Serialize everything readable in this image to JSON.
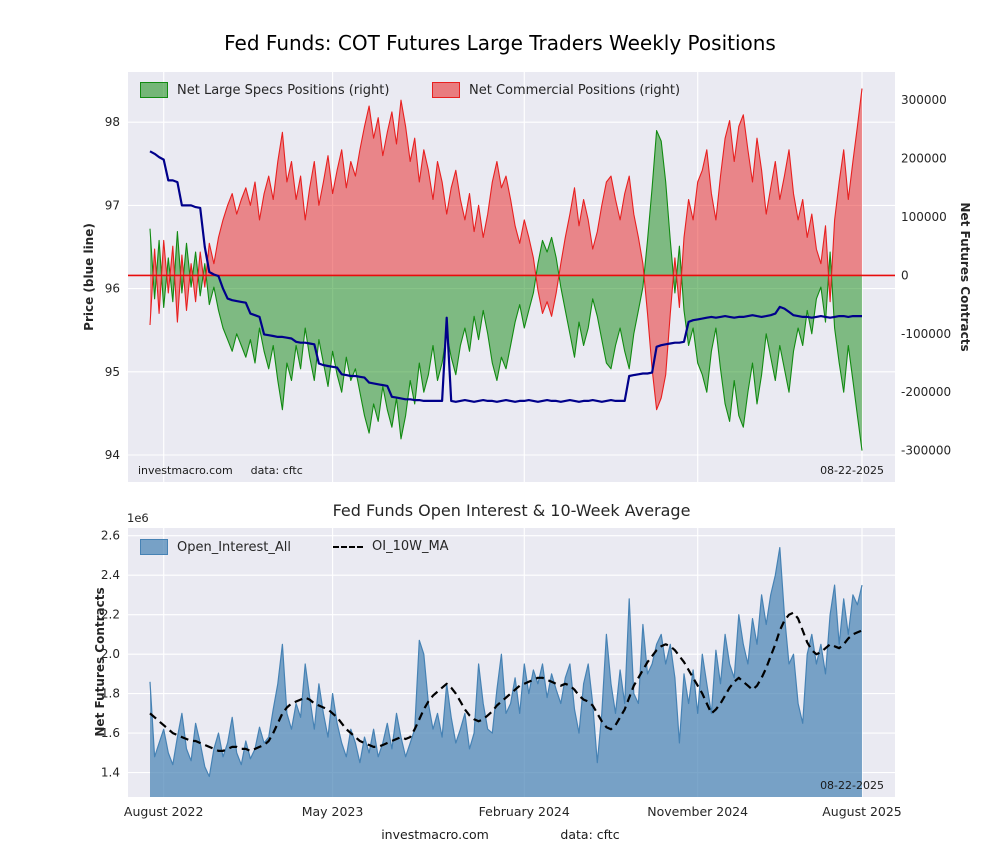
{
  "chart_data": [
    {
      "id": "cot-positions",
      "type": "area-line-combo",
      "title": "Fed Funds: COT Futures Large Traders Weekly Positions",
      "x_axis": {
        "start": "August 2022",
        "end": "August 2025",
        "frequency": "weekly",
        "points": 157
      },
      "left_axis": {
        "label": "Price (blue line)",
        "ticks": [
          94,
          95,
          96,
          97,
          98
        ],
        "range": [
          93.7,
          98.6
        ]
      },
      "right_axis": {
        "label": "Net Futures Contracts",
        "tick_values": [
          300000,
          200000,
          100000,
          0,
          -100000,
          -200000,
          -300000
        ],
        "tick_labels": [
          "300000",
          "200000",
          "100000",
          "0",
          "-100000",
          "-200000",
          "-300000"
        ],
        "range": [
          -355000,
          350000
        ]
      },
      "zero_line_color": "#e80c0c",
      "legend": [
        {
          "label": "Net Large Specs Positions (right)",
          "color": "#128a12"
        },
        {
          "label": "Net Commercial Positions (right)",
          "color": "#e82020"
        }
      ],
      "series": [
        {
          "name": "Net Large Specs Positions (right)",
          "type": "area",
          "axis": "right",
          "color": "#128a12",
          "values": [
            80000,
            -40000,
            60000,
            -55000,
            30000,
            -45000,
            75000,
            -30000,
            55000,
            -20000,
            40000,
            -35000,
            20000,
            -50000,
            -20000,
            -60000,
            -90000,
            -110000,
            -130000,
            -100000,
            -120000,
            -140000,
            -110000,
            -150000,
            -90000,
            -130000,
            -160000,
            -120000,
            -180000,
            -230000,
            -150000,
            -180000,
            -120000,
            -160000,
            -90000,
            -140000,
            -180000,
            -110000,
            -150000,
            -190000,
            -130000,
            -170000,
            -200000,
            -140000,
            -180000,
            -160000,
            -200000,
            -240000,
            -270000,
            -220000,
            -250000,
            -190000,
            -230000,
            -260000,
            -210000,
            -280000,
            -240000,
            -180000,
            -220000,
            -150000,
            -200000,
            -170000,
            -120000,
            -180000,
            -150000,
            -100000,
            -140000,
            -170000,
            -120000,
            -90000,
            -130000,
            -70000,
            -110000,
            -60000,
            -100000,
            -150000,
            -180000,
            -140000,
            -160000,
            -120000,
            -80000,
            -50000,
            -90000,
            -60000,
            -30000,
            20000,
            60000,
            40000,
            65000,
            30000,
            -20000,
            -60000,
            -100000,
            -140000,
            -80000,
            -120000,
            -90000,
            -40000,
            -70000,
            -110000,
            -150000,
            -160000,
            -120000,
            -90000,
            -130000,
            -160000,
            -100000,
            -60000,
            -20000,
            60000,
            150000,
            248000,
            230000,
            160000,
            60000,
            -30000,
            50000,
            -60000,
            -120000,
            -90000,
            -150000,
            -170000,
            -200000,
            -130000,
            -90000,
            -160000,
            -220000,
            -250000,
            -180000,
            -240000,
            -260000,
            -200000,
            -150000,
            -220000,
            -170000,
            -100000,
            -140000,
            -180000,
            -120000,
            -160000,
            -200000,
            -130000,
            -90000,
            -120000,
            -60000,
            -100000,
            -40000,
            -20000,
            -80000,
            40000,
            -90000,
            -150000,
            -200000,
            -120000,
            -180000,
            -240000,
            -300000
          ]
        },
        {
          "name": "Net Commercial Positions (right)",
          "type": "area",
          "axis": "right",
          "color": "#e82020",
          "values": [
            -85000,
            45000,
            -65000,
            60000,
            -30000,
            50000,
            -80000,
            35000,
            -60000,
            20000,
            -45000,
            40000,
            -20000,
            55000,
            20000,
            65000,
            95000,
            120000,
            140000,
            105000,
            130000,
            150000,
            120000,
            160000,
            95000,
            140000,
            170000,
            130000,
            195000,
            245000,
            160000,
            195000,
            130000,
            170000,
            95000,
            150000,
            195000,
            120000,
            160000,
            205000,
            140000,
            180000,
            215000,
            150000,
            195000,
            170000,
            215000,
            255000,
            290000,
            235000,
            270000,
            205000,
            245000,
            280000,
            225000,
            300000,
            255000,
            195000,
            235000,
            160000,
            215000,
            180000,
            130000,
            195000,
            160000,
            105000,
            150000,
            180000,
            130000,
            95000,
            140000,
            75000,
            120000,
            65000,
            105000,
            160000,
            195000,
            150000,
            170000,
            130000,
            85000,
            55000,
            95000,
            65000,
            30000,
            -25000,
            -65000,
            -45000,
            -70000,
            -30000,
            20000,
            65000,
            105000,
            150000,
            85000,
            130000,
            95000,
            45000,
            75000,
            120000,
            160000,
            170000,
            130000,
            95000,
            140000,
            170000,
            105000,
            65000,
            20000,
            -65000,
            -160000,
            -230000,
            -210000,
            -170000,
            -65000,
            30000,
            -55000,
            65000,
            130000,
            95000,
            160000,
            180000,
            215000,
            140000,
            95000,
            170000,
            235000,
            265000,
            195000,
            255000,
            275000,
            215000,
            160000,
            235000,
            180000,
            105000,
            150000,
            195000,
            130000,
            170000,
            215000,
            140000,
            95000,
            130000,
            65000,
            105000,
            45000,
            20000,
            85000,
            -45000,
            95000,
            160000,
            215000,
            130000,
            195000,
            255000,
            320000
          ]
        },
        {
          "name": "Price",
          "type": "line",
          "axis": "left",
          "color": "#00008b",
          "values": [
            97.65,
            97.62,
            97.58,
            97.55,
            97.3,
            97.3,
            97.28,
            97.0,
            97.0,
            97.0,
            96.98,
            96.97,
            96.5,
            96.2,
            96.17,
            96.15,
            96.0,
            95.88,
            95.86,
            95.85,
            95.84,
            95.83,
            95.7,
            95.68,
            95.66,
            95.45,
            95.44,
            95.43,
            95.42,
            95.42,
            95.41,
            95.4,
            95.36,
            95.35,
            95.35,
            95.34,
            95.33,
            95.1,
            95.08,
            95.07,
            95.06,
            95.05,
            94.97,
            94.96,
            94.95,
            94.95,
            94.94,
            94.93,
            94.87,
            94.86,
            94.85,
            94.84,
            94.83,
            94.7,
            94.69,
            94.68,
            94.67,
            94.67,
            94.66,
            94.66,
            94.65,
            94.65,
            94.65,
            94.65,
            94.65,
            95.65,
            94.65,
            94.64,
            94.65,
            94.66,
            94.65,
            94.64,
            94.65,
            94.66,
            94.65,
            94.65,
            94.64,
            94.65,
            94.66,
            94.65,
            94.64,
            94.65,
            94.65,
            94.66,
            94.65,
            94.64,
            94.65,
            94.66,
            94.65,
            94.65,
            94.64,
            94.65,
            94.66,
            94.65,
            94.64,
            94.65,
            94.65,
            94.66,
            94.65,
            94.64,
            94.65,
            94.66,
            94.65,
            94.65,
            94.65,
            94.95,
            94.96,
            94.97,
            94.98,
            94.98,
            94.99,
            95.3,
            95.32,
            95.33,
            95.34,
            95.35,
            95.35,
            95.36,
            95.6,
            95.62,
            95.63,
            95.64,
            95.65,
            95.66,
            95.65,
            95.66,
            95.67,
            95.66,
            95.65,
            95.66,
            95.66,
            95.67,
            95.68,
            95.67,
            95.66,
            95.67,
            95.68,
            95.7,
            95.78,
            95.76,
            95.72,
            95.68,
            95.67,
            95.66,
            95.66,
            95.65,
            95.66,
            95.67,
            95.66,
            95.65,
            95.66,
            95.67,
            95.67,
            95.66,
            95.67,
            95.67,
            95.67
          ]
        }
      ],
      "annotations": {
        "source": "investmacro.com",
        "source_data": "data: cftc",
        "date": "08-22-2025"
      }
    },
    {
      "id": "open-interest",
      "type": "area-line-combo",
      "title": "Fed Funds Open Interest & 10-Week Average",
      "y_axis": {
        "label": "Net Futures Contracts",
        "offset_text": "1e6",
        "units": "millions of contracts",
        "ticks": [
          1.4,
          1.6,
          1.8,
          2.0,
          2.2,
          2.4,
          2.6
        ],
        "range": [
          1.31,
          2.64
        ]
      },
      "x_axis": {
        "tick_labels": [
          "August 2022",
          "May 2023",
          "February 2024",
          "November 2024",
          "August 2025"
        ],
        "tick_weeks": [
          3,
          40,
          82,
          120,
          156
        ]
      },
      "legend": [
        {
          "label": "Open_Interest_All",
          "color": "#4682b4"
        },
        {
          "label": "OI_10W_MA",
          "color": "#000000",
          "style": "dashed"
        }
      ],
      "series": [
        {
          "name": "Open_Interest_All",
          "type": "area",
          "color": "#4682b4",
          "values": [
            1.86,
            1.48,
            1.55,
            1.62,
            1.5,
            1.44,
            1.58,
            1.7,
            1.52,
            1.46,
            1.65,
            1.55,
            1.43,
            1.38,
            1.52,
            1.6,
            1.48,
            1.55,
            1.68,
            1.5,
            1.44,
            1.56,
            1.47,
            1.52,
            1.63,
            1.55,
            1.58,
            1.72,
            1.85,
            2.05,
            1.7,
            1.62,
            1.75,
            1.68,
            1.95,
            1.78,
            1.62,
            1.85,
            1.7,
            1.58,
            1.8,
            1.65,
            1.55,
            1.48,
            1.62,
            1.55,
            1.45,
            1.58,
            1.5,
            1.62,
            1.48,
            1.55,
            1.65,
            1.52,
            1.7,
            1.58,
            1.48,
            1.55,
            1.62,
            2.07,
            2.0,
            1.75,
            1.62,
            1.7,
            1.58,
            1.85,
            1.68,
            1.55,
            1.62,
            1.7,
            1.52,
            1.6,
            1.95,
            1.75,
            1.62,
            1.6,
            1.82,
            2.0,
            1.7,
            1.75,
            1.88,
            1.7,
            1.95,
            1.8,
            1.92,
            1.85,
            1.95,
            1.78,
            1.9,
            1.82,
            1.75,
            1.88,
            1.95,
            1.72,
            1.6,
            1.85,
            1.95,
            1.75,
            1.45,
            1.7,
            2.1,
            1.85,
            1.7,
            1.92,
            1.75,
            2.28,
            1.8,
            1.75,
            2.15,
            1.9,
            1.95,
            2.05,
            2.1,
            1.95,
            2.05,
            1.88,
            1.55,
            1.9,
            1.75,
            1.92,
            1.7,
            2.0,
            1.85,
            1.7,
            2.02,
            1.85,
            2.1,
            1.95,
            1.88,
            2.2,
            2.05,
            1.95,
            2.18,
            2.05,
            2.3,
            2.15,
            2.3,
            2.4,
            2.54,
            2.2,
            1.95,
            2.0,
            1.75,
            1.65,
            2.0,
            2.1,
            1.95,
            2.05,
            1.9,
            2.2,
            2.35,
            2.05,
            2.28,
            2.1,
            2.3,
            2.25,
            2.35
          ]
        },
        {
          "name": "OI_10W_MA",
          "type": "line",
          "style": "dashed",
          "color": "#000000",
          "values": [
            1.7,
            1.68,
            1.66,
            1.64,
            1.62,
            1.6,
            1.59,
            1.58,
            1.57,
            1.56,
            1.56,
            1.55,
            1.54,
            1.53,
            1.52,
            1.51,
            1.51,
            1.52,
            1.53,
            1.53,
            1.52,
            1.52,
            1.51,
            1.52,
            1.53,
            1.54,
            1.56,
            1.6,
            1.65,
            1.7,
            1.73,
            1.75,
            1.76,
            1.77,
            1.78,
            1.77,
            1.75,
            1.74,
            1.73,
            1.72,
            1.7,
            1.68,
            1.65,
            1.62,
            1.6,
            1.58,
            1.56,
            1.55,
            1.54,
            1.53,
            1.53,
            1.54,
            1.55,
            1.56,
            1.57,
            1.58,
            1.57,
            1.58,
            1.62,
            1.67,
            1.72,
            1.76,
            1.79,
            1.81,
            1.83,
            1.85,
            1.83,
            1.8,
            1.76,
            1.72,
            1.69,
            1.67,
            1.66,
            1.67,
            1.69,
            1.71,
            1.74,
            1.76,
            1.78,
            1.8,
            1.82,
            1.84,
            1.85,
            1.86,
            1.87,
            1.88,
            1.88,
            1.87,
            1.86,
            1.85,
            1.84,
            1.85,
            1.84,
            1.82,
            1.79,
            1.77,
            1.76,
            1.74,
            1.7,
            1.66,
            1.63,
            1.62,
            1.64,
            1.68,
            1.72,
            1.78,
            1.84,
            1.88,
            1.92,
            1.96,
            1.99,
            2.02,
            2.04,
            2.05,
            2.04,
            2.02,
            1.99,
            1.96,
            1.92,
            1.88,
            1.84,
            1.8,
            1.75,
            1.7,
            1.72,
            1.75,
            1.79,
            1.83,
            1.86,
            1.88,
            1.86,
            1.84,
            1.82,
            1.84,
            1.88,
            1.93,
            1.99,
            2.05,
            2.12,
            2.17,
            2.2,
            2.21,
            2.18,
            2.12,
            2.06,
            2.02,
            2.0,
            2.01,
            2.03,
            2.05,
            2.04,
            2.03,
            2.05,
            2.08,
            2.1,
            2.11,
            2.12
          ]
        }
      ],
      "annotations": {
        "date": "08-22-2025",
        "footer_source": "investmacro.com",
        "footer_data": "data: cftc"
      }
    }
  ]
}
